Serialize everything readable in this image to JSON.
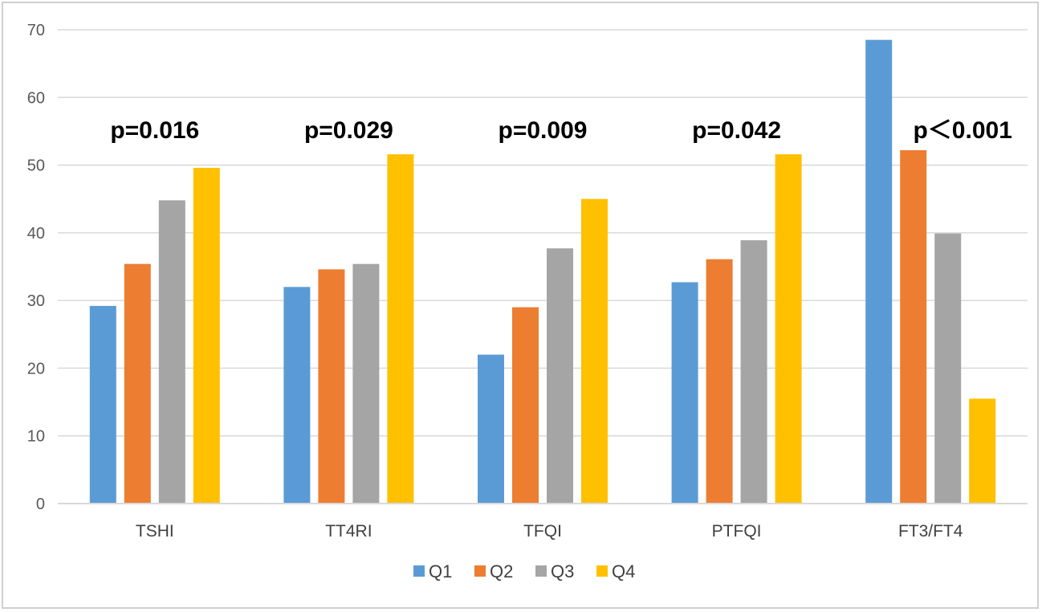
{
  "chart_data": {
    "type": "bar",
    "categories": [
      "TSHI",
      "TT4RI",
      "TFQI",
      "PTFQI",
      "FT3/FT4"
    ],
    "series": [
      {
        "name": "Q1",
        "color": "#5B9BD5",
        "values": [
          29.2,
          32.0,
          22.0,
          32.7,
          68.5
        ]
      },
      {
        "name": "Q2",
        "color": "#ED7D31",
        "values": [
          35.4,
          34.6,
          29.0,
          36.1,
          52.2
        ]
      },
      {
        "name": "Q3",
        "color": "#A5A5A5",
        "values": [
          44.8,
          35.4,
          37.7,
          38.9,
          39.9
        ]
      },
      {
        "name": "Q4",
        "color": "#FFC000",
        "values": [
          49.6,
          51.6,
          45.0,
          51.6,
          15.5
        ]
      }
    ],
    "annotations": [
      "p=0.016",
      "p=0.029",
      "p=0.009",
      "p=0.042",
      "p＜0.001"
    ],
    "y_ticks": [
      "0",
      "10",
      "20",
      "30",
      "40",
      "50",
      "60",
      "70"
    ],
    "ylim": [
      0,
      70
    ],
    "grid": true,
    "legend_position": "bottom"
  }
}
